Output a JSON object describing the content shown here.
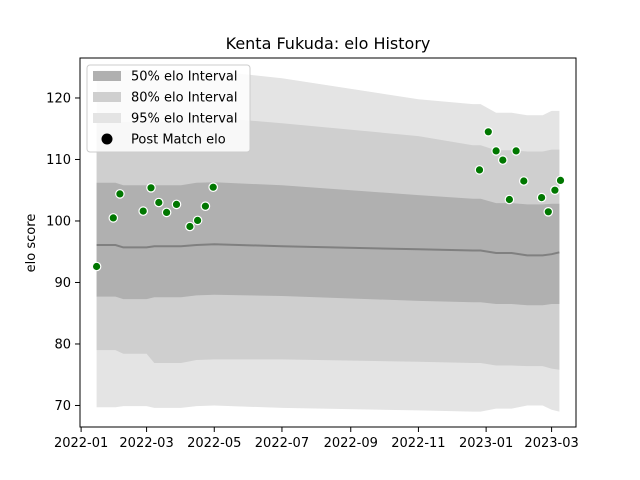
{
  "chart_data": {
    "type": "line",
    "title": "Kenta Fukuda: elo History",
    "xlabel": "",
    "ylabel": "elo score",
    "xlim": [
      "2021-12-31",
      "2023-03-23"
    ],
    "ylim": [
      66.5,
      126.5
    ],
    "x_ticks": [
      "2022-01",
      "2022-03",
      "2022-05",
      "2022-07",
      "2022-09",
      "2022-11",
      "2023-01",
      "2023-03"
    ],
    "x_tick_dates": [
      "2022-01-01",
      "2022-03-01",
      "2022-05-01",
      "2022-07-01",
      "2022-09-01",
      "2022-11-01",
      "2023-01-01",
      "2023-03-01"
    ],
    "y_ticks": [
      70,
      80,
      90,
      100,
      110,
      120
    ],
    "legend": {
      "location": "top-left",
      "entries": [
        "50% elo Interval",
        "80% elo Interval",
        "95% elo Interval",
        "Post Match elo"
      ]
    },
    "colors": {
      "band50": "#b0b0b0",
      "band80": "#cfcfcf",
      "band95": "#e4e4e4",
      "mean_line": "#808080",
      "point_fill": "#007700",
      "point_edge": "#ffffff"
    },
    "series": [
      {
        "name": "mean",
        "x": [
          "2022-01-15",
          "2022-02-01",
          "2022-02-08",
          "2022-03-01",
          "2022-03-08",
          "2022-04-01",
          "2022-04-15",
          "2022-05-01",
          "2022-07-01",
          "2022-11-01",
          "2022-12-20",
          "2022-12-27",
          "2023-01-10",
          "2023-01-24",
          "2023-02-07",
          "2023-02-21",
          "2023-03-01",
          "2023-03-08"
        ],
        "values": [
          96.1,
          96.1,
          95.7,
          95.7,
          95.9,
          95.9,
          96.1,
          96.2,
          95.9,
          95.4,
          95.2,
          95.2,
          94.8,
          94.8,
          94.4,
          94.4,
          94.6,
          94.9
        ]
      },
      {
        "name": "50% elo Interval",
        "upper": [
          106.2,
          106.2,
          105.8,
          105.8,
          105.8,
          105.8,
          106.2,
          106.3,
          105.8,
          104.2,
          103.6,
          103.6,
          102.9,
          102.9,
          102.7,
          102.7,
          102.8,
          102.8
        ],
        "lower": [
          87.7,
          87.7,
          87.3,
          87.3,
          87.6,
          87.6,
          87.9,
          88.0,
          87.8,
          87.0,
          86.8,
          86.8,
          86.5,
          86.5,
          86.3,
          86.3,
          86.5,
          86.5
        ]
      },
      {
        "name": "80% elo Interval",
        "upper": [
          116.1,
          116.1,
          116.1,
          116.1,
          116.1,
          116.1,
          116.6,
          116.8,
          115.9,
          113.8,
          112.3,
          112.3,
          111.5,
          111.5,
          111.3,
          111.3,
          111.6,
          111.6
        ],
        "lower": [
          79.0,
          79.0,
          78.4,
          78.4,
          76.9,
          76.9,
          77.4,
          77.5,
          77.5,
          77.1,
          76.9,
          76.9,
          76.5,
          76.5,
          76.4,
          76.4,
          76.0,
          75.8
        ]
      },
      {
        "name": "95% elo Interval",
        "upper": [
          124.5,
          124.5,
          124.5,
          124.5,
          124.5,
          124.5,
          124.5,
          124.4,
          123.2,
          119.8,
          119.0,
          119.0,
          117.6,
          117.6,
          117.2,
          117.2,
          117.9,
          117.9
        ],
        "lower": [
          69.7,
          69.7,
          69.9,
          69.9,
          69.6,
          69.6,
          69.9,
          70.0,
          69.6,
          69.2,
          69.0,
          69.0,
          69.5,
          69.5,
          70.0,
          70.0,
          69.3,
          69.0
        ]
      },
      {
        "name": "Post Match elo",
        "x": [
          "2022-01-15",
          "2022-01-30",
          "2022-02-05",
          "2022-02-26",
          "2022-03-05",
          "2022-03-12",
          "2022-03-19",
          "2022-03-28",
          "2022-04-09",
          "2022-04-16",
          "2022-04-23",
          "2022-04-30",
          "2022-12-26",
          "2023-01-03",
          "2023-01-10",
          "2023-01-16",
          "2023-01-22",
          "2023-01-28",
          "2023-02-04",
          "2023-02-20",
          "2023-02-26",
          "2023-03-04",
          "2023-03-09"
        ],
        "values": [
          92.6,
          100.5,
          104.4,
          101.6,
          105.4,
          103.0,
          101.4,
          102.7,
          99.1,
          100.1,
          102.4,
          105.5,
          108.3,
          114.5,
          111.4,
          109.9,
          103.5,
          111.4,
          106.5,
          103.8,
          101.5,
          105.0,
          106.6
        ]
      }
    ]
  }
}
